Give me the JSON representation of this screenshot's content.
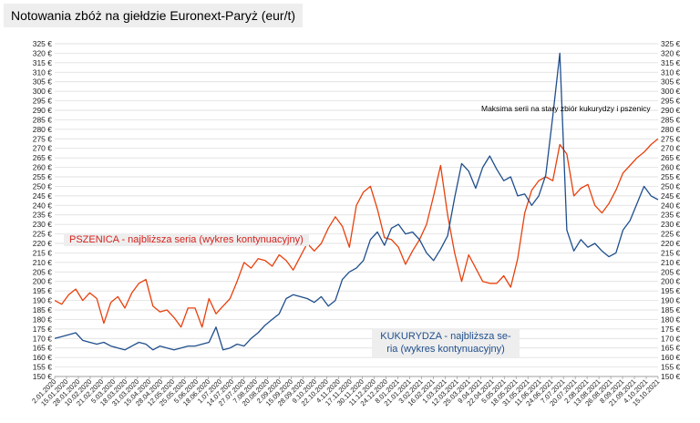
{
  "chart_data": {
    "type": "line",
    "title": "Notowania zbóż na giełdzie Euronext-Paryż (eur/t)",
    "ylim": [
      150,
      325
    ],
    "ytick_step": 5,
    "y_unit": "€",
    "grid": true,
    "x_tick_labels": [
      "2.01.2020",
      "15.01.2020",
      "28.01.2020",
      "10.02.2020",
      "21.02.2020",
      "5.03.2020",
      "18.03.2020",
      "31.03.2020",
      "15.04.2020",
      "28.04.2020",
      "12.05.2020",
      "25.05.2020",
      "5.06.2020",
      "18.06.2020",
      "1.07.2020",
      "14.07.2020",
      "27.07.2020",
      "7.08.2020",
      "20.08.2020",
      "2.09.2020",
      "15.09.2020",
      "28.09.2020",
      "9.10.2020",
      "22.10.2020",
      "4.11.2020",
      "17.11.2020",
      "30.11.2020",
      "11.12.2020",
      "24.12.2020",
      "8.01.2021",
      "21.01.2021",
      "3.02.2021",
      "16.02.2021",
      "1.03.2021",
      "12.03.2021",
      "25.03.2021",
      "9.04.2021",
      "22.04.2021",
      "5.05.2021",
      "18.05.2021",
      "31.05.2021",
      "11.06.2021",
      "24.06.2021",
      "7.07.2021",
      "20.07.2021",
      "2.08.2021",
      "13.08.2021",
      "26.08.2021",
      "8.09.2021",
      "21.09.2021",
      "4.10.2021",
      "15.10.2021"
    ],
    "series": [
      {
        "name": "PSZENICA - najbliższa seria (wykres kontynuacyjny)",
        "color": "#e8400c",
        "values": [
          190,
          188,
          193,
          196,
          190,
          194,
          191,
          178,
          189,
          192,
          186,
          194,
          199,
          201,
          187,
          184,
          185,
          181,
          176,
          186,
          186,
          176,
          191,
          183,
          187,
          191,
          200,
          210,
          207,
          212,
          211,
          208,
          214,
          211,
          206,
          213,
          220,
          216,
          220,
          228,
          234,
          229,
          218,
          240,
          247,
          250,
          238,
          223,
          222,
          218,
          209,
          216,
          222,
          230,
          245,
          261,
          235,
          215,
          200,
          214,
          207,
          200,
          199,
          199,
          203,
          197,
          212,
          236,
          248,
          253,
          255,
          253,
          272,
          267,
          245,
          249,
          251,
          240,
          236,
          241,
          248,
          257,
          261,
          265,
          268,
          272,
          275
        ]
      },
      {
        "name": "KUKURYDZA - najbliższa seria (wykres kontynuacyjny)",
        "color": "#1f4e8c",
        "values": [
          170,
          171,
          172,
          173,
          169,
          168,
          167,
          168,
          166,
          165,
          164,
          166,
          168,
          167,
          164,
          166,
          165,
          164,
          165,
          166,
          166,
          167,
          168,
          176,
          164,
          165,
          167,
          166,
          170,
          173,
          177,
          180,
          183,
          191,
          193,
          192,
          191,
          189,
          192,
          187,
          190,
          201,
          205,
          207,
          211,
          222,
          226,
          219,
          228,
          230,
          225,
          226,
          222,
          215,
          211,
          217,
          224,
          244,
          262,
          258,
          249,
          260,
          266,
          259,
          253,
          255,
          245,
          246,
          240,
          245,
          256,
          287,
          320,
          227,
          216,
          222,
          218,
          220,
          216,
          213,
          215,
          227,
          232,
          241,
          250,
          245,
          243
        ]
      }
    ],
    "legend": {
      "wheat_label": "PSZENICA - najbliższa seria      (wykres kontynuacyjny)",
      "corn_label": "KUKURYDZA - najbliższa se-ria (wykres kontynuacyjny)"
    },
    "annotation": "Maksima serii na stary zbiór kukurydzy i pszenicy"
  }
}
